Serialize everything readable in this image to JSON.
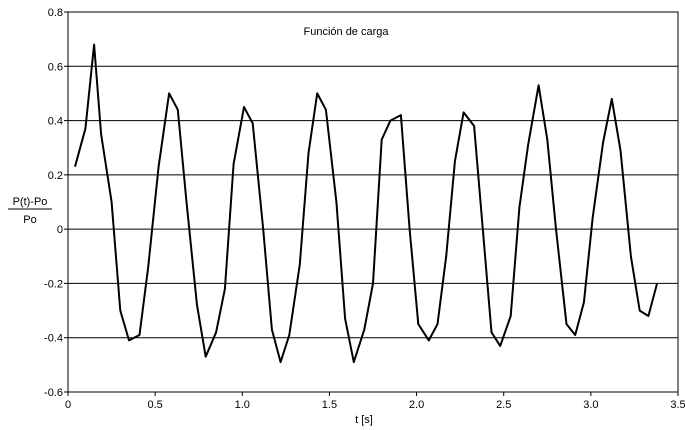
{
  "chart_data": {
    "type": "line",
    "title": "Función de carga",
    "xlabel": "t [s]",
    "ylabel_numerator": "P(t)-Po",
    "ylabel_denominator": "Po",
    "xlim": [
      0,
      3.5
    ],
    "ylim": [
      -0.6,
      0.8
    ],
    "xticks": [
      0,
      0.5,
      1.0,
      1.5,
      2.0,
      2.5,
      3.0,
      3.5
    ],
    "xtick_labels": [
      "0",
      "0.5",
      "1.0",
      "1.5",
      "2.0",
      "2.5",
      "3.0",
      "3.5"
    ],
    "yticks": [
      -0.6,
      -0.4,
      -0.2,
      0,
      0.2,
      0.4,
      0.6,
      0.8
    ],
    "ytick_labels": [
      "-0.6",
      "-0.4",
      "-0.2",
      "0",
      "0.2",
      "0.4",
      "0.6",
      "0.8"
    ],
    "grid": "horizontal",
    "series": [
      {
        "color": "#000000",
        "x": [
          0.04,
          0.1,
          0.15,
          0.19,
          0.25,
          0.3,
          0.35,
          0.41,
          0.46,
          0.52,
          0.58,
          0.63,
          0.68,
          0.74,
          0.79,
          0.85,
          0.9,
          0.95,
          1.01,
          1.06,
          1.12,
          1.17,
          1.22,
          1.27,
          1.33,
          1.38,
          1.43,
          1.48,
          1.54,
          1.59,
          1.64,
          1.7,
          1.75,
          1.8,
          1.85,
          1.91,
          1.96,
          2.01,
          2.07,
          2.12,
          2.17,
          2.22,
          2.27,
          2.33,
          2.38,
          2.43,
          2.48,
          2.54,
          2.59,
          2.64,
          2.7,
          2.75,
          2.8,
          2.86,
          2.91,
          2.96,
          3.01,
          3.07,
          3.12,
          3.17,
          3.23,
          3.28,
          3.33,
          3.38
        ],
        "y": [
          0.23,
          0.37,
          0.68,
          0.35,
          0.1,
          -0.3,
          -0.41,
          -0.39,
          -0.14,
          0.23,
          0.5,
          0.44,
          0.1,
          -0.28,
          -0.47,
          -0.38,
          -0.22,
          0.24,
          0.45,
          0.39,
          0.0,
          -0.37,
          -0.49,
          -0.39,
          -0.13,
          0.28,
          0.5,
          0.44,
          0.1,
          -0.33,
          -0.49,
          -0.37,
          -0.2,
          0.33,
          0.4,
          0.42,
          0.0,
          -0.35,
          -0.41,
          -0.35,
          -0.1,
          0.25,
          0.43,
          0.38,
          0.0,
          -0.38,
          -0.43,
          -0.32,
          0.08,
          0.31,
          0.53,
          0.33,
          0.0,
          -0.35,
          -0.39,
          -0.27,
          0.04,
          0.32,
          0.48,
          0.29,
          -0.1,
          -0.3,
          -0.32,
          -0.2
        ]
      }
    ]
  }
}
